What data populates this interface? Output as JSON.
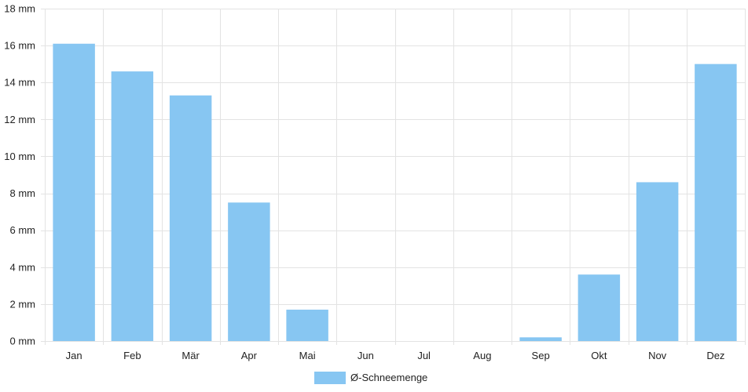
{
  "chart_data": {
    "type": "bar",
    "categories": [
      "Jan",
      "Feb",
      "Mär",
      "Apr",
      "Mai",
      "Jun",
      "Jul",
      "Aug",
      "Sep",
      "Okt",
      "Nov",
      "Dez"
    ],
    "series": [
      {
        "name": "Ø-Schneemenge",
        "values": [
          16.1,
          14.6,
          13.3,
          7.5,
          1.7,
          0,
          0,
          0,
          0.2,
          3.6,
          8.6,
          15.0
        ],
        "color": "#87c6f2"
      }
    ],
    "y_unit_suffix": " mm",
    "ylim": [
      0,
      18
    ],
    "y_ticks": [
      0,
      2,
      4,
      6,
      8,
      10,
      12,
      14,
      16,
      18
    ],
    "grid": true,
    "legend_position": "bottom-center",
    "title": "",
    "xlabel": "",
    "ylabel": ""
  }
}
